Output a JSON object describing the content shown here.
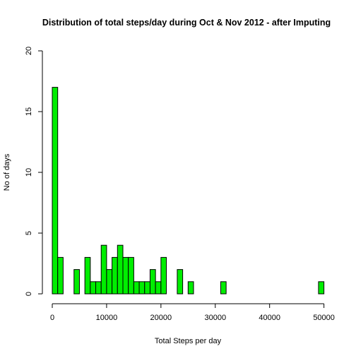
{
  "chart_data": {
    "type": "bar",
    "title": "Distribution of total steps/day during Oct & Nov 2012 - after Imputing",
    "xlabel": "Total Steps per day",
    "ylabel": "No of days",
    "bar_color": "#00ee00",
    "edge_color": "#000000",
    "bin_width": 1000,
    "xlim": [
      0,
      52000
    ],
    "ylim": [
      0,
      20
    ],
    "x_ticks": [
      0,
      10000,
      20000,
      30000,
      40000,
      50000
    ],
    "y_ticks": [
      0,
      5,
      10,
      15,
      20
    ],
    "bins_start": [
      0,
      1000,
      2000,
      3000,
      4000,
      5000,
      6000,
      7000,
      8000,
      9000,
      10000,
      11000,
      12000,
      13000,
      14000,
      15000,
      16000,
      17000,
      18000,
      19000,
      20000,
      21000,
      22000,
      23000,
      24000,
      25000,
      26000,
      27000,
      28000,
      29000,
      30000,
      31000,
      32000,
      33000,
      34000,
      35000,
      36000,
      37000,
      38000,
      39000,
      40000,
      41000,
      42000,
      43000,
      44000,
      45000,
      46000,
      47000,
      48000,
      49000,
      50000,
      51000
    ],
    "values": [
      17,
      3,
      0,
      0,
      2,
      0,
      3,
      1,
      1,
      4,
      2,
      3,
      4,
      3,
      3,
      1,
      1,
      1,
      2,
      1,
      3,
      0,
      0,
      2,
      0,
      1,
      0,
      0,
      0,
      0,
      0,
      1,
      0,
      0,
      0,
      0,
      0,
      0,
      0,
      0,
      0,
      0,
      0,
      0,
      0,
      0,
      0,
      0,
      0,
      1,
      0,
      0
    ]
  }
}
